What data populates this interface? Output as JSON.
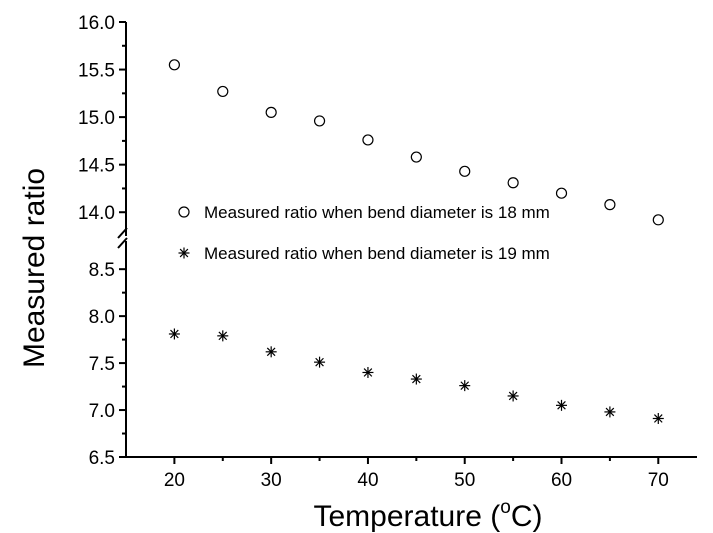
{
  "chart_data": {
    "type": "scatter",
    "xlabel": "Temperature (",
    "xlabel_superscript": "o",
    "xlabel_suffix": "C)",
    "ylabel": "Measured ratio",
    "xlim": [
      15,
      74
    ],
    "x_ticks": [
      20,
      30,
      40,
      50,
      60,
      70
    ],
    "axis_break": true,
    "y_upper_range": [
      13.75,
      16.0
    ],
    "y_upper_ticks": [
      "14.0",
      "14.5",
      "15.0",
      "15.5",
      "16.0"
    ],
    "y_lower_range": [
      6.5,
      8.8
    ],
    "y_lower_ticks": [
      "6.5",
      "7.0",
      "7.5",
      "8.0",
      "8.5"
    ],
    "legend_placement": "center-left",
    "series": [
      {
        "name": "Measured ratio when bend diameter is 18 mm",
        "marker": "open-circle",
        "segment": "upper",
        "x": [
          20,
          25,
          30,
          35,
          40,
          45,
          50,
          55,
          60,
          65,
          70
        ],
        "y": [
          15.55,
          15.27,
          15.05,
          14.96,
          14.76,
          14.58,
          14.43,
          14.31,
          14.2,
          14.08,
          13.92
        ]
      },
      {
        "name": "Measured ratio when bend diameter is 19 mm",
        "marker": "asterisk",
        "segment": "lower",
        "x": [
          20,
          25,
          30,
          35,
          40,
          45,
          50,
          55,
          60,
          65,
          70
        ],
        "y": [
          7.81,
          7.79,
          7.62,
          7.51,
          7.4,
          7.33,
          7.26,
          7.15,
          7.05,
          6.98,
          6.91
        ]
      }
    ]
  }
}
